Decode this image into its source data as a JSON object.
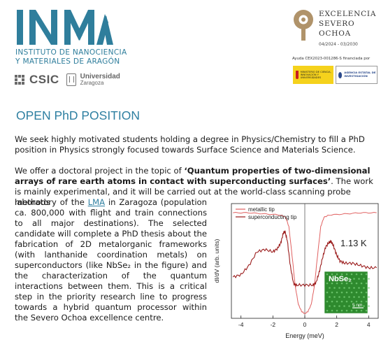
{
  "header": {
    "inma_logo_text": "INMA",
    "institute_line1": "INSTITUTO DE NANOCIENCIA",
    "institute_line2": "Y MATERIALES DE ARAGÓN",
    "csic_label": "CSIC",
    "uz_line1": "Universidad",
    "uz_line2": "Zaragoza",
    "severo_line1": "EXCELENCIA",
    "severo_line2": "SEVERO",
    "severo_line3": "OCHOA",
    "severo_dates": "04/2024 - 03/2030",
    "funding_note": "Ayuda CEX2023-001286-S financiada por",
    "ministry_label": "MINISTERIO DE CIENCIA, INNOVACIÓN Y UNIVERSIDADES",
    "aei_label": "AGENCIA ESTATAL DE INVESTIGACIÓN"
  },
  "title": "OPEN PhD POSITION",
  "paragraphs": {
    "p1": "We seek highly motivated students holding a degree in Physics/Chemistry to fill a PhD position in Physics strongly focused towards Surface Science and Materials Science.",
    "p2_pre": "We offer a doctoral project in the topic of ",
    "p2_bold": "‘Quantum properties of two-dimensional arrays of rare earth atoms in contact with superconducting surfaces’",
    "p2_post": ". The work is mainly experimental, and it will be carried out at the world-class scanning probe methods",
    "p3_pre": "laboratory of the ",
    "p3_link": "LMA",
    "p3_post": " in Zaragoza (population ca. 800,000 with flight and train connections to all major destinations). The selected candidate will complete a PhD thesis about the fabrication of 2D metalorganic frameworks (with lanthanide coordination metals) on superconductors (like NbSe₂ in the figure) and the characterization of the quantum interactions between them. This is a critical step in the priority research line to progress towards a hybrid quantum processor within the Severo Ochoa excellence centre."
  },
  "colors": {
    "brand_blue": "#2e7fa1",
    "metallic_tip": "#e06060",
    "superconducting_tip": "#9b1c1c"
  },
  "chart_data": {
    "type": "line",
    "xlabel": "Energy (meV)",
    "ylabel": "dI/dV (arb. units)",
    "xlim": [
      -4.6,
      4.6
    ],
    "ylim": [
      0,
      1
    ],
    "x_ticks": [
      "-4",
      "-2",
      "0",
      "2",
      "4"
    ],
    "grid": false,
    "legend_position": "top-left",
    "annotations": [
      "1.13 K",
      "NbSe₂",
      "5 nm"
    ],
    "series": [
      {
        "name": "metallic tip",
        "color": "#e06060",
        "x": [
          -4.5,
          -3.5,
          -2.5,
          -1.5,
          -1.2,
          -1.0,
          -0.8,
          -0.6,
          -0.4,
          -0.2,
          0,
          0.2,
          0.4,
          0.6,
          0.8,
          1.0,
          1.2,
          1.5,
          2.5,
          3.5,
          4.5
        ],
        "y": [
          0.92,
          0.92,
          0.91,
          0.9,
          0.88,
          0.8,
          0.55,
          0.28,
          0.12,
          0.06,
          0.04,
          0.06,
          0.12,
          0.28,
          0.55,
          0.8,
          0.88,
          0.9,
          0.91,
          0.92,
          0.92
        ]
      },
      {
        "name": "superconducting tip",
        "color": "#9b1c1c",
        "x": [
          -4.5,
          -4.0,
          -3.5,
          -3.0,
          -2.5,
          -2.0,
          -1.7,
          -1.5,
          -1.35,
          -1.25,
          -1.1,
          -0.9,
          -0.7,
          -0.5,
          0,
          0.5,
          0.7,
          0.9,
          1.1,
          1.3,
          1.5,
          1.65,
          1.8,
          2.0,
          2.2,
          2.5,
          3.0,
          3.5,
          4.0,
          4.5
        ],
        "y": [
          0.36,
          0.38,
          0.46,
          0.58,
          0.6,
          0.58,
          0.61,
          0.66,
          0.74,
          0.76,
          0.68,
          0.45,
          0.3,
          0.29,
          0.29,
          0.29,
          0.31,
          0.4,
          0.52,
          0.62,
          0.66,
          0.67,
          0.63,
          0.55,
          0.5,
          0.48,
          0.48,
          0.46,
          0.44,
          0.44
        ]
      }
    ]
  }
}
